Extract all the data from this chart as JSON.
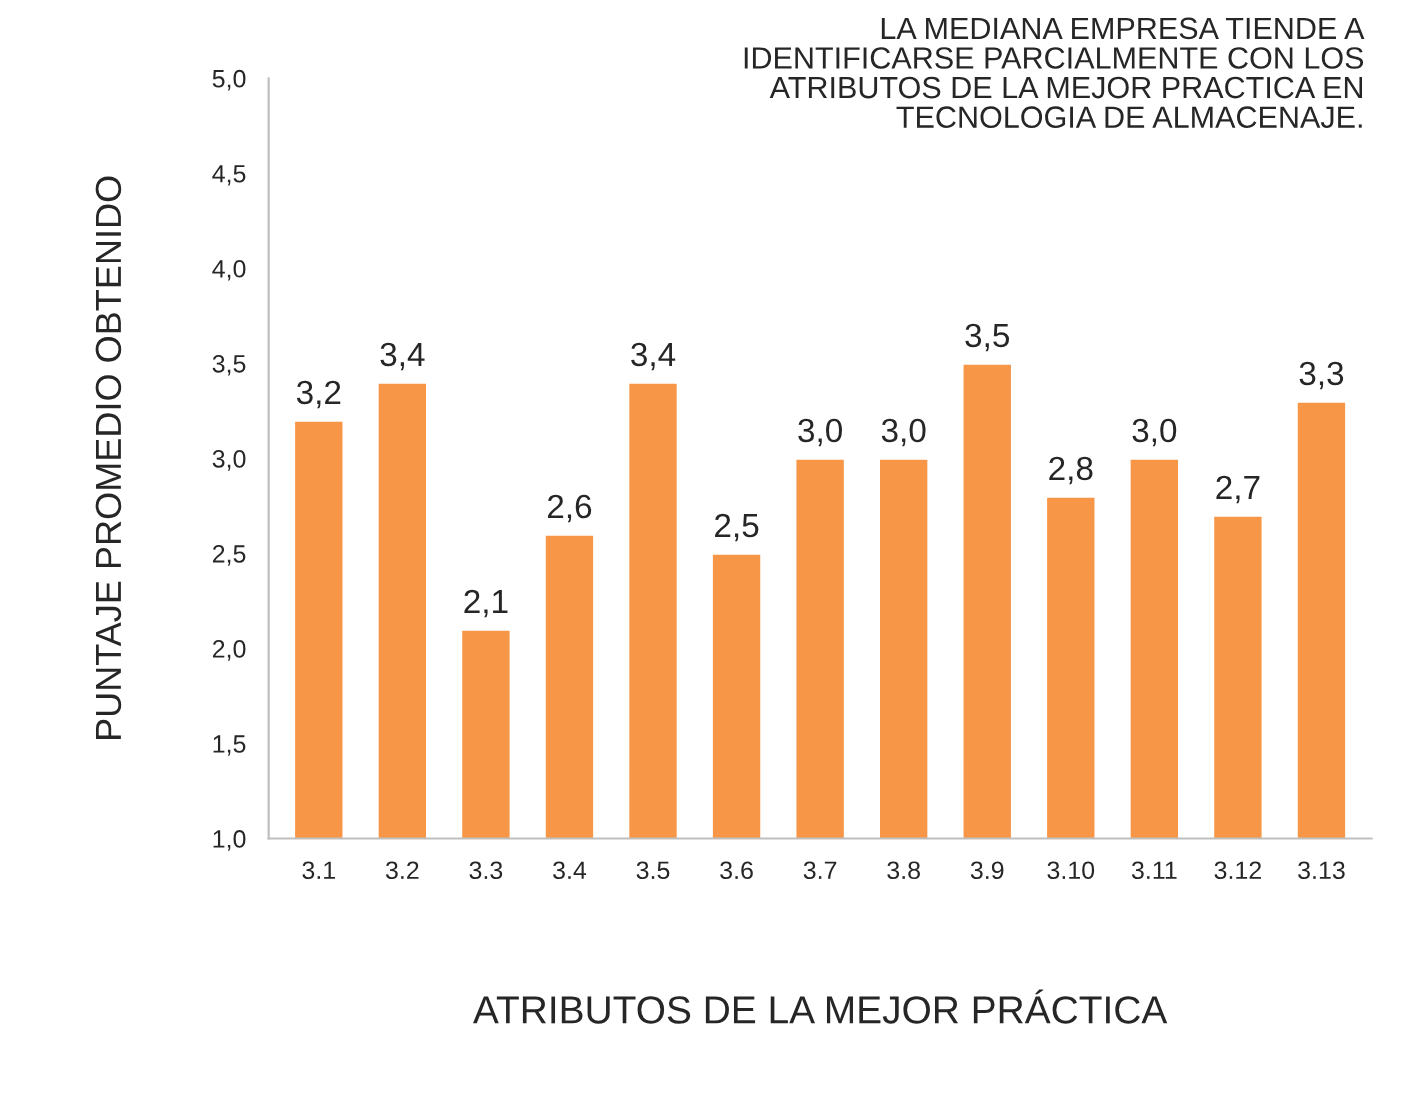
{
  "chart_data": {
    "type": "bar",
    "annotations": [
      "LA MEDIANA EMPRESA TIENDE A\nIDENTIFICARSE PARCIALMENTE CON LOS\nATRIBUTOS DE LA MEJOR PRACTICA EN\nTECNOLOGIA DE ALMACENAJE."
    ],
    "xlabel": "ATRIBUTOS DE LA MEJOR PRÁCTICA",
    "ylabel": "PUNTAJE PROMEDIO OBTENIDO",
    "categories": [
      "3.1",
      "3.2",
      "3.3",
      "3.4",
      "3.5",
      "3.6",
      "3.7",
      "3.8",
      "3.9",
      "3.10",
      "3.11",
      "3.12",
      "3.13"
    ],
    "values": [
      3.2,
      3.4,
      2.1,
      2.6,
      3.4,
      2.5,
      3.0,
      3.0,
      3.5,
      2.8,
      3.0,
      2.7,
      3.3
    ],
    "value_labels": [
      "3,2",
      "3,4",
      "2,1",
      "2,6",
      "3,4",
      "2,5",
      "3,0",
      "3,0",
      "3,5",
      "2,8",
      "3,0",
      "2,7",
      "3,3"
    ],
    "color": "#f79646",
    "ylim": [
      1.0,
      5.0
    ],
    "yticks": [
      {
        "value": 1.0,
        "label": "1,0"
      },
      {
        "value": 1.5,
        "label": "1,5"
      },
      {
        "value": 2.0,
        "label": "2,0"
      },
      {
        "value": 2.5,
        "label": "2,5"
      },
      {
        "value": 3.0,
        "label": "3,0"
      },
      {
        "value": 3.5,
        "label": "3,5"
      },
      {
        "value": 4.0,
        "label": "4,0"
      },
      {
        "value": 4.5,
        "label": "4,5"
      },
      {
        "value": 5.0,
        "label": "5,0"
      }
    ],
    "grid": false
  }
}
